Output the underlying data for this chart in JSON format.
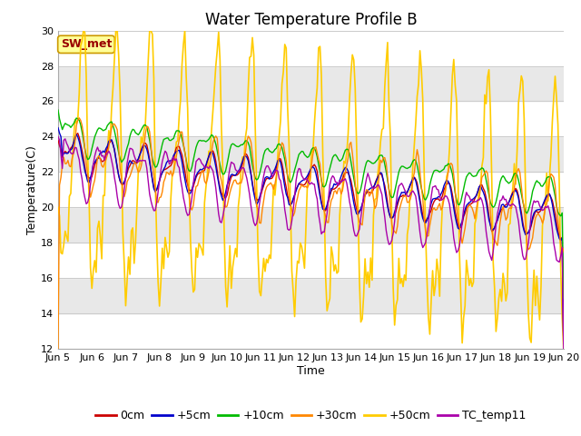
{
  "title": "Water Temperature Profile B",
  "xlabel": "Time",
  "ylabel": "Temperature(C)",
  "ylim": [
    12,
    30
  ],
  "yticks": [
    12,
    14,
    16,
    18,
    20,
    22,
    24,
    26,
    28,
    30
  ],
  "xlim": [
    0,
    360
  ],
  "xtick_labels": [
    "Jun 5",
    "Jun 6",
    "Jun 7",
    "Jun 8",
    "Jun 9",
    "Jun 10",
    "Jun 11",
    "Jun 12",
    "Jun 13",
    "Jun 14",
    "Jun 15",
    "Jun 16",
    "Jun 17",
    "Jun 18",
    "Jun 19",
    "Jun 20"
  ],
  "colors": {
    "0cm": "#cc0000",
    "+5cm": "#0000cc",
    "+10cm": "#00bb00",
    "+30cm": "#ff8800",
    "+50cm": "#ffcc00",
    "TC_temp11": "#aa00aa"
  },
  "annotation_text": "SW_met",
  "annotation_color": "#990000",
  "annotation_bg": "#ffff99",
  "annotation_border": "#cc9900",
  "title_fontsize": 12,
  "label_fontsize": 9,
  "tick_fontsize": 8
}
